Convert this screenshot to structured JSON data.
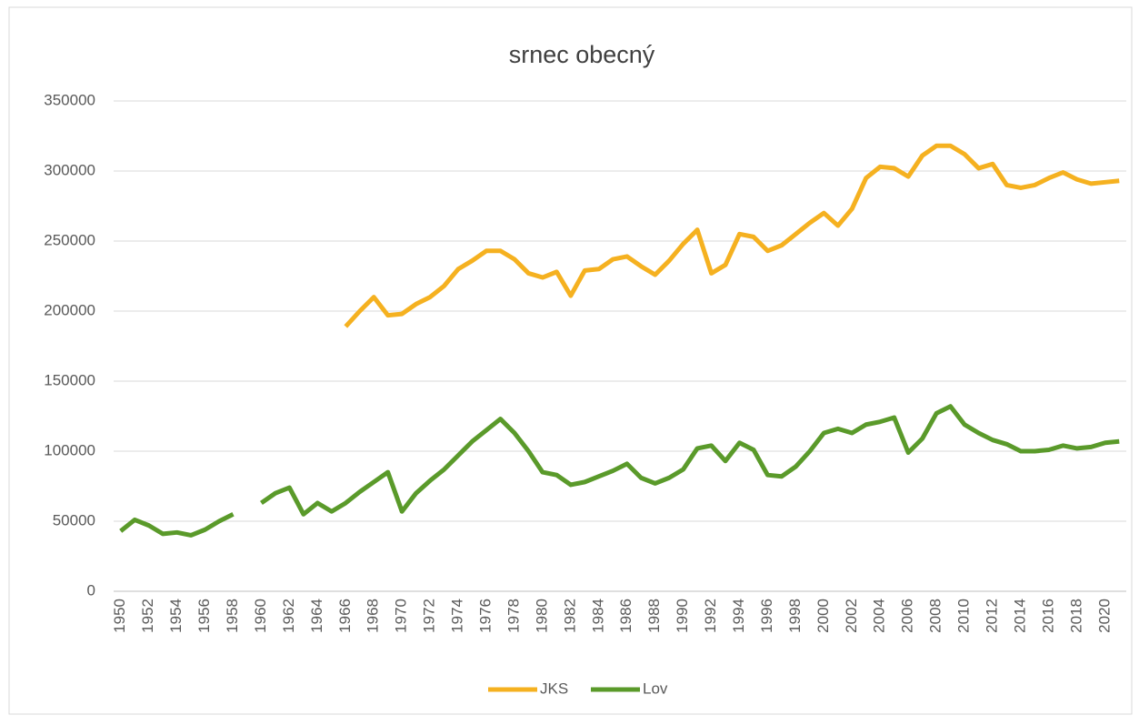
{
  "chart_data": {
    "type": "line",
    "title": "srnec obecný",
    "categories": [
      1950,
      null,
      1952,
      null,
      1954,
      null,
      1956,
      null,
      1958,
      null,
      1960,
      null,
      1962,
      null,
      1964,
      null,
      1966,
      null,
      1968,
      null,
      1970,
      null,
      1972,
      null,
      1974,
      null,
      1976,
      null,
      1978,
      null,
      1980,
      null,
      1982,
      null,
      1984,
      null,
      1986,
      null,
      1988,
      null,
      1990,
      null,
      1992,
      null,
      1994,
      null,
      1996,
      null,
      1998,
      null,
      2000,
      null,
      2002,
      null,
      2004,
      null,
      2006,
      null,
      2008,
      null,
      2010,
      null,
      2012,
      null,
      2014,
      null,
      2016,
      null,
      2018,
      null,
      2020,
      null
    ],
    "series": [
      {
        "name": "JKS",
        "color": "#f5b120",
        "values": [
          null,
          null,
          null,
          null,
          null,
          null,
          null,
          null,
          null,
          null,
          null,
          null,
          null,
          null,
          null,
          null,
          189000,
          200000,
          210000,
          197000,
          198000,
          205000,
          210000,
          218000,
          230000,
          236000,
          243000,
          243000,
          237000,
          227000,
          224000,
          228000,
          211000,
          229000,
          230000,
          237000,
          239000,
          232000,
          226000,
          236000,
          248000,
          258000,
          227000,
          233000,
          255000,
          253000,
          243000,
          247000,
          255000,
          263000,
          270000,
          261000,
          273000,
          295000,
          303000,
          302000,
          296000,
          311000,
          318000,
          318000,
          312000,
          302000,
          305000,
          290000,
          288000,
          290000,
          295000,
          299000,
          294000,
          291000,
          292000,
          293000
        ]
      },
      {
        "name": "Lov",
        "color": "#5a9a2a",
        "values": [
          43000,
          51000,
          47000,
          41000,
          42000,
          40000,
          44000,
          50000,
          55000,
          null,
          63000,
          70000,
          74000,
          55000,
          63000,
          57000,
          63000,
          71000,
          78000,
          85000,
          57000,
          70000,
          79000,
          87000,
          97000,
          107000,
          115000,
          123000,
          113000,
          100000,
          85000,
          83000,
          76000,
          78000,
          82000,
          86000,
          91000,
          81000,
          77000,
          81000,
          87000,
          102000,
          104000,
          93000,
          106000,
          101000,
          83000,
          82000,
          89000,
          100000,
          113000,
          116000,
          113000,
          119000,
          121000,
          124000,
          99000,
          109000,
          127000,
          132000,
          119000,
          113000,
          108000,
          105000,
          100000,
          100000,
          101000,
          104000,
          102000,
          103000,
          106000,
          107000
        ]
      }
    ],
    "ylim": [
      0,
      350000
    ],
    "yticks": [
      0,
      50000,
      100000,
      150000,
      200000,
      250000,
      300000,
      350000
    ],
    "grid": true,
    "legend": "bottom"
  }
}
